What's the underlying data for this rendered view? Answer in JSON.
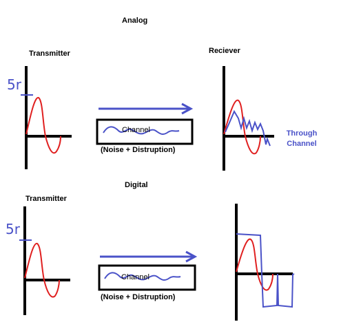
{
  "analog": {
    "title": "Analog",
    "transmitter": "Transmitter",
    "receiver": "Reciever",
    "amplitude_label": "5r",
    "channel_label": "Channel",
    "noise_label": "(Noise + Distruption)",
    "through_channel": "Through Channel"
  },
  "digital": {
    "title": "Digital",
    "transmitter": "Transmitter",
    "amplitude_label": "5r",
    "channel_label": "Channel",
    "noise_label": "(Noise + Distruption)"
  },
  "colors": {
    "axis": "#000000",
    "signal": "#e02020",
    "noise": "#4a52c8"
  }
}
